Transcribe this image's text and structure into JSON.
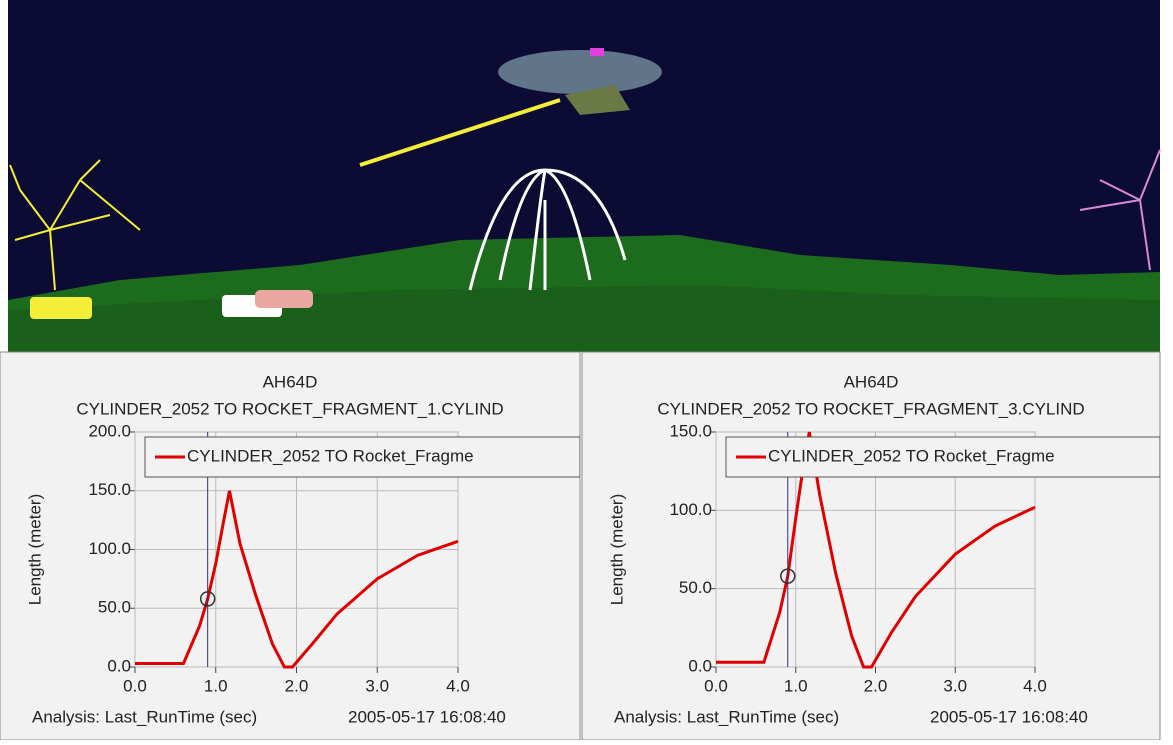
{
  "chart_data": [
    {
      "type": "line",
      "title": "AH64D",
      "subtitle": "CYLINDER_2052 TO ROCKET_FRAGMENT_1.CYLIND",
      "y_label": "Length (meter)",
      "x_label": "Analysis:  Last_RunTime (sec)",
      "timestamp": "2005-05-17 16:08:40",
      "x": [
        0,
        0.6,
        0.8,
        0.9,
        1.0,
        1.1,
        1.17,
        1.3,
        1.5,
        1.7,
        1.85,
        1.95,
        2.2,
        2.5,
        3.0,
        3.5,
        4.0
      ],
      "series": [
        {
          "name": "CYLINDER_2052 TO Rocket_Fragme",
          "color": "#e00000",
          "values": [
            3,
            3,
            35,
            58,
            88,
            125,
            150,
            105,
            60,
            20,
            0,
            0,
            20,
            45,
            75,
            95,
            107
          ]
        }
      ],
      "xlim": [
        0,
        4
      ],
      "ylim": [
        0,
        200
      ],
      "xticks": [
        {
          "value": 0,
          "label": "0.0"
        },
        {
          "value": 1,
          "label": "1.0"
        },
        {
          "value": 2,
          "label": "2.0"
        },
        {
          "value": 3,
          "label": "3.0"
        },
        {
          "value": 4,
          "label": "4.0"
        }
      ],
      "yticks": [
        {
          "value": 0,
          "label": "0.0"
        },
        {
          "value": 50,
          "label": "50.0"
        },
        {
          "value": 100,
          "label": "100.0"
        },
        {
          "value": 150,
          "label": "150.0"
        },
        {
          "value": 200,
          "label": "200.0"
        }
      ],
      "grid": true,
      "legend": "upper right",
      "cursor": {
        "x": 0.9,
        "y": 58
      }
    },
    {
      "type": "line",
      "title": "AH64D",
      "subtitle": "CYLINDER_2052 TO ROCKET_FRAGMENT_3.CYLIND",
      "y_label": "Length (meter)",
      "x_label": "Analysis:  Last_RunTime (sec)",
      "timestamp": "2005-05-17 16:08:40",
      "x": [
        0,
        0.6,
        0.8,
        0.9,
        1.0,
        1.1,
        1.17,
        1.3,
        1.5,
        1.7,
        1.85,
        1.95,
        2.2,
        2.5,
        3.0,
        3.5,
        4.0
      ],
      "series": [
        {
          "name": "CYLINDER_2052 TO Rocket_Fragme",
          "color": "#e00000",
          "values": [
            3,
            3,
            35,
            58,
            95,
            130,
            150,
            110,
            60,
            20,
            0,
            0,
            22,
            45,
            72,
            90,
            102
          ]
        }
      ],
      "xlim": [
        0,
        4
      ],
      "ylim": [
        0,
        150
      ],
      "xticks": [
        {
          "value": 0,
          "label": "0.0"
        },
        {
          "value": 1,
          "label": "1.0"
        },
        {
          "value": 2,
          "label": "2.0"
        },
        {
          "value": 3,
          "label": "3.0"
        },
        {
          "value": 4,
          "label": "4.0"
        }
      ],
      "yticks": [
        {
          "value": 0,
          "label": "0.0"
        },
        {
          "value": 50,
          "label": "50.0"
        },
        {
          "value": 100,
          "label": "100.0"
        },
        {
          "value": 150,
          "label": "150.0"
        }
      ],
      "grid": true,
      "legend": "upper right",
      "cursor": {
        "x": 0.9,
        "y": 58
      }
    }
  ]
}
